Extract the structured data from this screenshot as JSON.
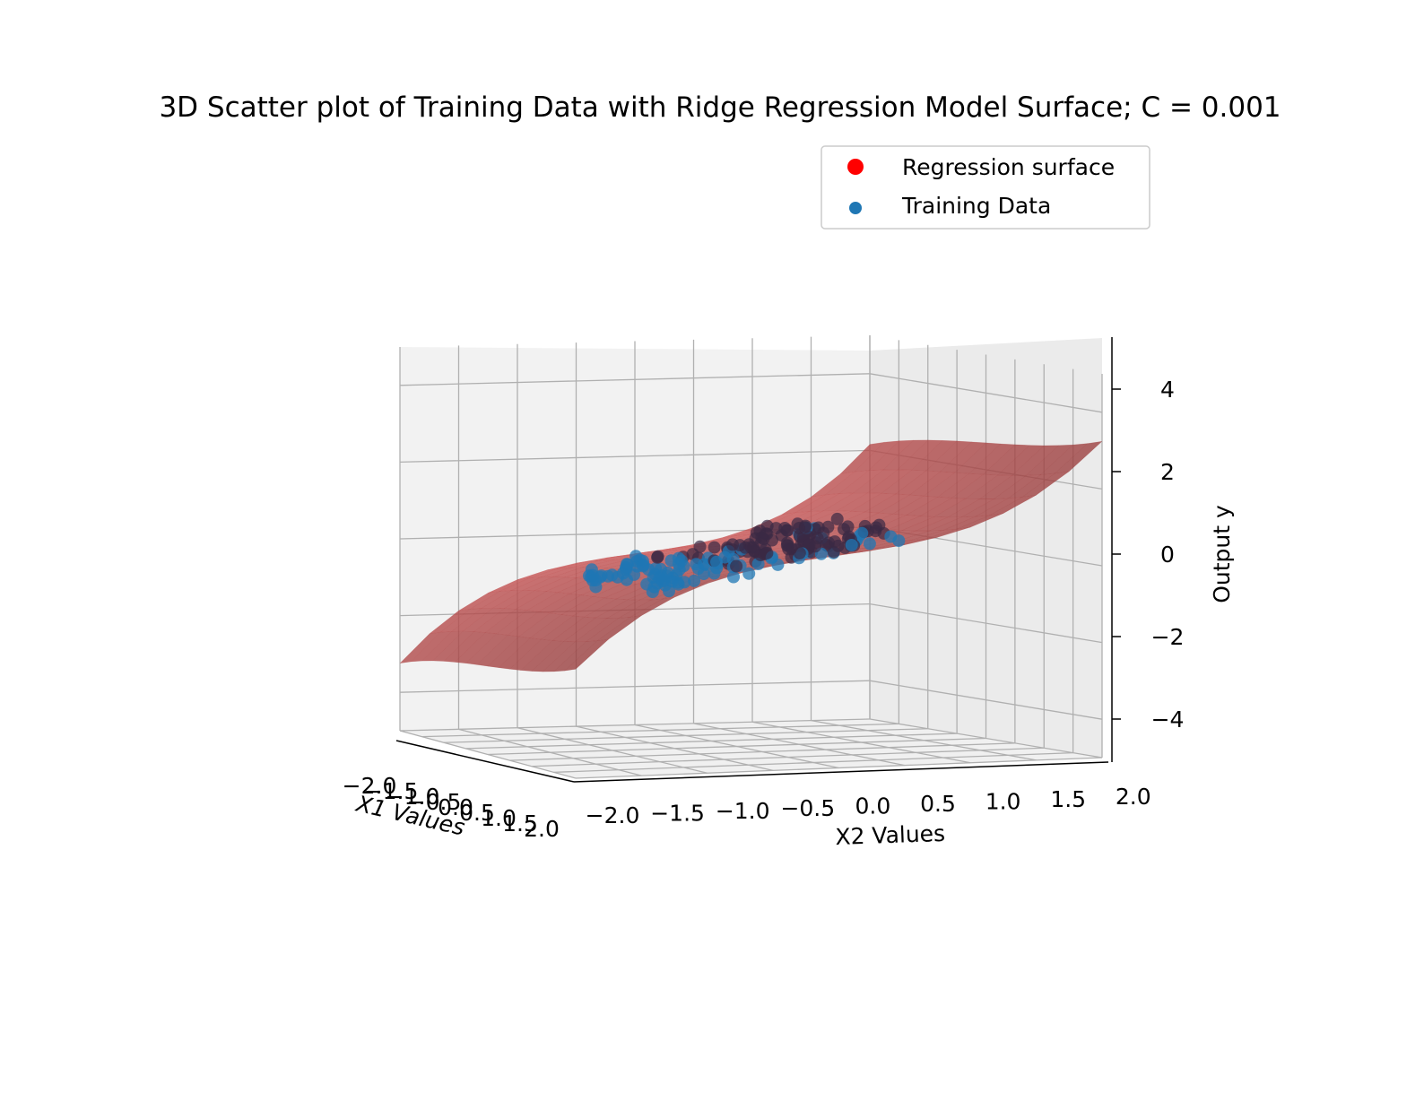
{
  "chart_data": {
    "type": "scatter",
    "title": "3D Scatter plot of Training Data with Ridge Regression Model Surface; C = 0.001",
    "xlabel": "X1 Values",
    "ylabel": "X2 Values",
    "zlabel": "Output y",
    "x_ticks": [
      "−2.0",
      "−1.5",
      "−1.0",
      "−0.5",
      "0.0",
      "0.5",
      "1.0",
      "1.5",
      "2.0"
    ],
    "y_ticks": [
      "−2.0",
      "−1.5",
      "−1.0",
      "−0.5",
      "0.0",
      "0.5",
      "1.0",
      "1.5",
      "2.0"
    ],
    "z_ticks": [
      "−4",
      "−2",
      "0",
      "2",
      "4"
    ],
    "xlim": [
      -2,
      2
    ],
    "ylim": [
      -2,
      2
    ],
    "zlim": [
      -5,
      5
    ],
    "grid": true,
    "legend_position": "top-right",
    "series": [
      {
        "name": "Regression surface",
        "kind": "surface",
        "color": "#cd5c5c"
      },
      {
        "name": "Training Data",
        "kind": "scatter",
        "color": "#1f77b4"
      }
    ]
  }
}
